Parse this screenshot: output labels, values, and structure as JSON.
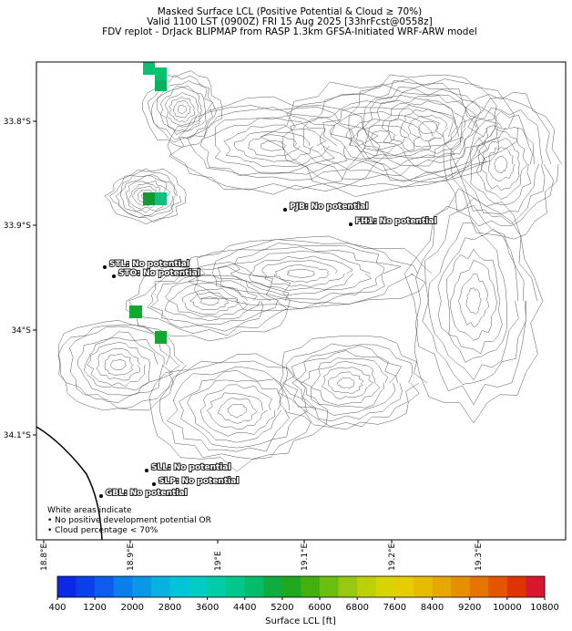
{
  "header": {
    "lines": [
      "Masked Surface LCL (Positive Potential & Cloud ≥ 70%)",
      "Valid 1100 LST (0900Z) FRI 15 Aug 2025 [33hrFcst@0558z]",
      "FDV replot - DrJack BLIPMAP from RASP 1.3km GFSA-Initiated WRF-ARW model"
    ]
  },
  "lat_labels": [
    "33.8°S",
    "33.9°S",
    "34°S",
    "34.1°S"
  ],
  "lon_labels": [
    "18.8°E",
    "18.9°E",
    "19°E",
    "19.1°E",
    "19.2°E",
    "19.3°E"
  ],
  "stations": [
    "PJB: No potential",
    "FH1: No potential",
    "STL: No potential",
    "STO: No potential",
    "SLL: No potential",
    "SLP: No potential",
    "GBL: No potential"
  ],
  "note": [
    "White areas indicate",
    "• No positive development potential OR",
    "• Cloud percentage < 70%"
  ],
  "colorbar": {
    "label": "Surface LCL [ft]",
    "range": [
      400,
      10800
    ],
    "ticks": [
      400,
      1200,
      2000,
      2800,
      3600,
      4400,
      5200,
      6000,
      6800,
      7600,
      8400,
      9200,
      10000,
      10800
    ],
    "colors": [
      "#0a28e6",
      "#0a40ea",
      "#0c5cee",
      "#0a7eea",
      "#0a98e4",
      "#05b2e0",
      "#00c4d8",
      "#00ccc6",
      "#00cca8",
      "#00c88a",
      "#05bc68",
      "#10ac40",
      "#20a81e",
      "#44b010",
      "#6abe10",
      "#98c810",
      "#bcd00a",
      "#d8d400",
      "#e6cc00",
      "#e6bc00",
      "#e6a800",
      "#e69000",
      "#e67400",
      "#e65400",
      "#e03400",
      "#d81830"
    ]
  }
}
